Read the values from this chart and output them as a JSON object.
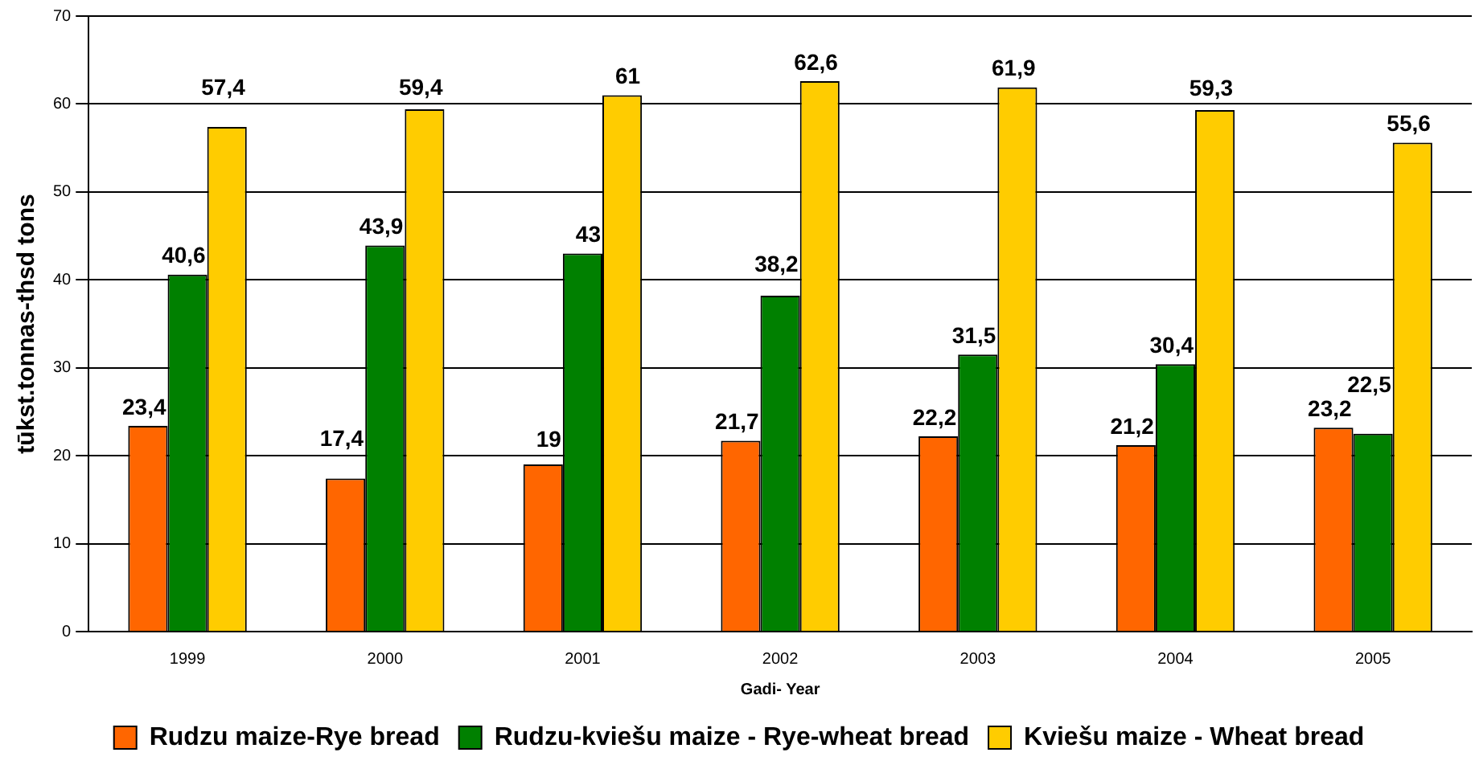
{
  "chart_data": {
    "type": "bar",
    "xlabel": "Gadi- Year",
    "ylabel": "tūkst.tonnas-thsd tons",
    "categories": [
      "1999",
      "2000",
      "2001",
      "2002",
      "2003",
      "2004",
      "2005"
    ],
    "series": [
      {
        "name": "Rudzu maize-Rye bread",
        "color": "#ff6600",
        "values": [
          23.4,
          17.4,
          19,
          21.7,
          22.2,
          21.2,
          23.2
        ],
        "value_labels": [
          "23,4",
          "17,4",
          "19",
          "21,7",
          "22,2",
          "21,2",
          "23,2"
        ]
      },
      {
        "name": "Rudzu-kviešu maize - Rye-wheat bread",
        "color": "#008000",
        "values": [
          40.6,
          43.9,
          43,
          38.2,
          31.5,
          30.4,
          22.5
        ],
        "value_labels": [
          "40,6",
          "43,9",
          "43",
          "38,2",
          "31,5",
          "30,4",
          "22,5"
        ]
      },
      {
        "name": "Kviešu maize - Wheat bread",
        "color": "#ffcc00",
        "values": [
          57.4,
          59.4,
          61,
          62.6,
          61.9,
          59.3,
          55.6
        ],
        "value_labels": [
          "57,4",
          "59,4",
          "61",
          "62,6",
          "61,9",
          "59,3",
          "55,6"
        ]
      }
    ],
    "ylim": [
      0,
      70
    ],
    "yticks": [
      0,
      10,
      20,
      30,
      40,
      50,
      60,
      70
    ],
    "grid": "y",
    "legend": "bottom"
  }
}
